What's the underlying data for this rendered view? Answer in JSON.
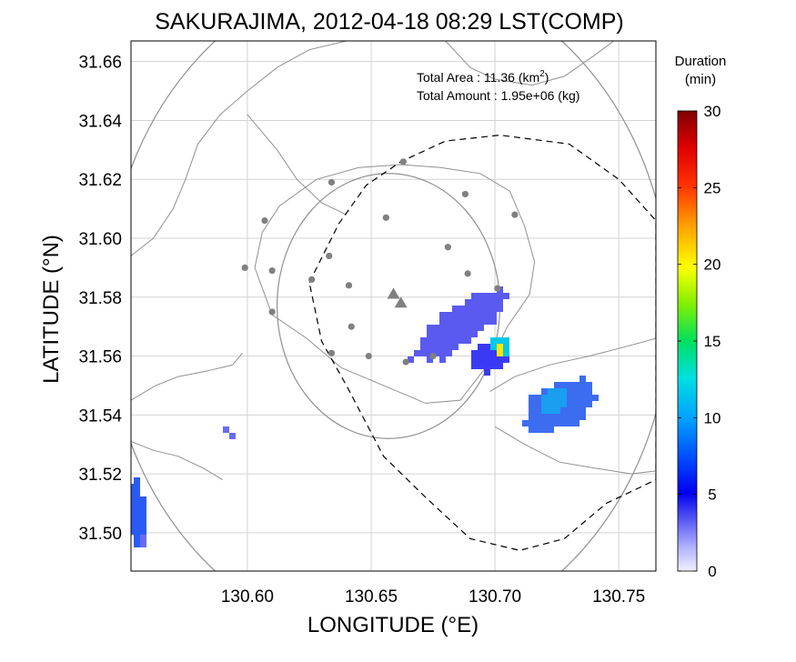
{
  "chart_data": {
    "type": "scatter",
    "title": "SAKURAJIMA, 2012-04-18 08:29 LST(COMP)",
    "xlabel": "LONGITUDE (°E)",
    "ylabel": "LATITUDE (°N)",
    "xlim": [
      130.553,
      130.765
    ],
    "ylim": [
      31.487,
      31.667
    ],
    "xticks": [
      "130.60",
      "130.65",
      "130.70",
      "130.75"
    ],
    "yticks": [
      "31.50",
      "31.52",
      "31.54",
      "31.56",
      "31.58",
      "31.60",
      "31.62",
      "31.64",
      "31.66"
    ],
    "grid": true,
    "annotations": {
      "area_label": "Total Area   : 11.36 (km",
      "area_sup": "2",
      "area_close": ")",
      "amount": "Total Amount : 1.95e+06 (kg)"
    },
    "colorbar": {
      "title_line1": "Duration",
      "title_line2": "(min)",
      "range": [
        0,
        30
      ],
      "ticks": [
        "0",
        "5",
        "10",
        "15",
        "20",
        "25",
        "30"
      ]
    },
    "range_rings": [
      {
        "center": [
          130.657,
          31.577
        ],
        "radius_deg": 0.045
      },
      {
        "center": [
          130.657,
          31.577
        ],
        "radius_deg": 0.114
      }
    ],
    "stations": [
      [
        130.663,
        31.626
      ],
      [
        130.634,
        31.619
      ],
      [
        130.688,
        31.615
      ],
      [
        130.607,
        31.606
      ],
      [
        130.656,
        31.607
      ],
      [
        130.681,
        31.597
      ],
      [
        130.708,
        31.608
      ],
      [
        130.599,
        31.59
      ],
      [
        130.61,
        31.589
      ],
      [
        130.633,
        31.594
      ],
      [
        130.626,
        31.586
      ],
      [
        130.641,
        31.584
      ],
      [
        130.689,
        31.588
      ],
      [
        130.701,
        31.583
      ],
      [
        130.61,
        31.575
      ],
      [
        130.642,
        31.57
      ],
      [
        130.634,
        31.561
      ],
      [
        130.649,
        31.56
      ],
      [
        130.664,
        31.558
      ],
      [
        130.675,
        31.56
      ]
    ],
    "vents": [
      [
        130.659,
        31.581
      ],
      [
        130.662,
        31.578
      ]
    ],
    "ash_clusters": [
      {
        "center": [
          130.686,
          31.57
        ],
        "lon_span": 0.042,
        "lat_span": 0.012,
        "angle_deg": -35,
        "duration": 4,
        "color": "#5a5af0"
      },
      {
        "center": [
          130.699,
          31.56
        ],
        "lon_span": 0.016,
        "lat_span": 0.01,
        "angle_deg": -30,
        "duration": 4,
        "color": "#3a3af5"
      },
      {
        "center": [
          130.702,
          31.563
        ],
        "lon_span": 0.006,
        "lat_span": 0.008,
        "angle_deg": 0,
        "duration": 12,
        "color": "#00c8e6"
      },
      {
        "center": [
          130.702,
          31.563
        ],
        "lon_span": 0.003,
        "lat_span": 0.004,
        "angle_deg": 0,
        "duration": 19,
        "color": "#ffe600"
      },
      {
        "center": [
          130.726,
          31.543
        ],
        "lon_span": 0.03,
        "lat_span": 0.014,
        "angle_deg": -30,
        "duration": 5,
        "color": "#3c6cf0"
      },
      {
        "center": [
          130.724,
          31.545
        ],
        "lon_span": 0.012,
        "lat_span": 0.008,
        "angle_deg": -30,
        "duration": 8,
        "color": "#1a9ef0"
      },
      {
        "center": [
          130.593,
          31.534
        ],
        "lon_span": 0.003,
        "lat_span": 0.007,
        "angle_deg": -40,
        "duration": 3,
        "color": "#6a6af0"
      },
      {
        "center": [
          130.555,
          31.507
        ],
        "lon_span": 0.006,
        "lat_span": 0.022,
        "angle_deg": 0,
        "duration": 5,
        "color": "#2a5af5"
      },
      {
        "center": [
          130.558,
          31.497
        ],
        "lon_span": 0.004,
        "lat_span": 0.004,
        "angle_deg": 0,
        "duration": 3,
        "color": "#6a6af0"
      }
    ],
    "boundary_dashed": [
      [
        130.625,
        31.585
      ],
      [
        130.637,
        31.605
      ],
      [
        130.648,
        31.618
      ],
      [
        130.662,
        31.626
      ],
      [
        130.68,
        31.633
      ],
      [
        130.702,
        31.635
      ],
      [
        130.73,
        31.632
      ],
      [
        130.75,
        31.62
      ],
      [
        130.765,
        31.606
      ],
      [
        130.765,
        31.518
      ],
      [
        130.745,
        31.51
      ],
      [
        130.728,
        31.498
      ],
      [
        130.71,
        31.494
      ],
      [
        130.69,
        31.498
      ],
      [
        130.672,
        31.512
      ],
      [
        130.655,
        31.526
      ],
      [
        130.64,
        31.55
      ],
      [
        130.63,
        31.565
      ],
      [
        130.625,
        31.585
      ]
    ],
    "island_outline": [
      [
        130.603,
        31.59
      ],
      [
        130.606,
        31.602
      ],
      [
        130.613,
        31.611
      ],
      [
        130.628,
        31.62
      ],
      [
        130.645,
        31.624
      ],
      [
        130.662,
        31.625
      ],
      [
        130.678,
        31.624
      ],
      [
        130.694,
        31.622
      ],
      [
        130.706,
        31.616
      ],
      [
        130.712,
        31.604
      ],
      [
        130.716,
        31.592
      ],
      [
        130.714,
        31.581
      ],
      [
        130.705,
        31.57
      ],
      [
        130.698,
        31.558
      ],
      [
        130.686,
        31.545
      ],
      [
        130.672,
        31.544
      ],
      [
        130.655,
        31.55
      ],
      [
        130.638,
        31.556
      ],
      [
        130.624,
        31.566
      ],
      [
        130.61,
        31.574
      ],
      [
        130.603,
        31.59
      ]
    ],
    "coast_lines": [
      [
        [
          130.553,
          31.594
        ],
        [
          130.562,
          31.6
        ],
        [
          130.57,
          31.61
        ],
        [
          130.575,
          31.62
        ],
        [
          130.58,
          31.632
        ],
        [
          130.589,
          31.642
        ],
        [
          130.6,
          31.65
        ],
        [
          130.612,
          31.658
        ],
        [
          130.625,
          31.664
        ],
        [
          130.64,
          31.667
        ]
      ],
      [
        [
          130.68,
          31.667
        ],
        [
          130.69,
          31.658
        ],
        [
          130.7,
          31.654
        ],
        [
          130.715,
          31.652
        ],
        [
          130.728,
          31.655
        ],
        [
          130.74,
          31.662
        ],
        [
          130.748,
          31.667
        ]
      ],
      [
        [
          130.553,
          31.545
        ],
        [
          130.563,
          31.55
        ],
        [
          130.572,
          31.553
        ],
        [
          130.584,
          31.555
        ],
        [
          130.594,
          31.557
        ],
        [
          130.598,
          31.561
        ]
      ],
      [
        [
          130.553,
          31.531
        ],
        [
          130.562,
          31.528
        ],
        [
          130.572,
          31.526
        ],
        [
          130.582,
          31.522
        ],
        [
          130.59,
          31.518
        ]
      ],
      [
        [
          130.698,
          31.548
        ],
        [
          130.708,
          31.553
        ],
        [
          130.722,
          31.557
        ],
        [
          130.738,
          31.56
        ],
        [
          130.752,
          31.563
        ],
        [
          130.765,
          31.566
        ]
      ],
      [
        [
          130.7,
          31.536
        ],
        [
          130.712,
          31.53
        ],
        [
          130.726,
          31.524
        ],
        [
          130.74,
          31.522
        ],
        [
          130.755,
          31.52
        ],
        [
          130.765,
          31.521
        ]
      ],
      [
        [
          130.6,
          31.642
        ],
        [
          130.612,
          31.63
        ],
        [
          130.62,
          31.62
        ],
        [
          130.63,
          31.612
        ],
        [
          130.64,
          31.608
        ]
      ]
    ]
  }
}
